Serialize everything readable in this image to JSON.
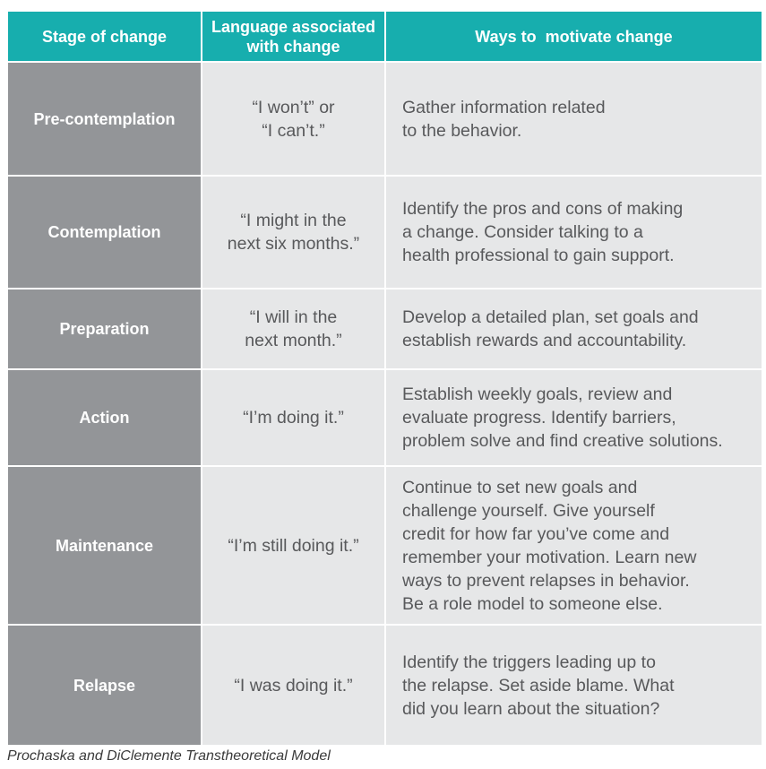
{
  "table": {
    "headers": {
      "stage": "Stage of change",
      "language_line1": "Language associated",
      "language_line2": "with change",
      "ways": "Ways to  motivate change"
    },
    "rows": [
      {
        "stage": "Pre-contemplation",
        "language": [
          "“I won’t” or",
          "“I can’t.”"
        ],
        "ways": [
          "Gather information related",
          "to the behavior."
        ]
      },
      {
        "stage": "Contemplation",
        "language": [
          "“I might in the",
          "next six months.”"
        ],
        "ways": [
          "Identify the pros and cons of making",
          "a change. Consider talking to a",
          "health professional to gain support."
        ]
      },
      {
        "stage": "Preparation",
        "language": [
          "“I will in the",
          "next month.”"
        ],
        "ways": [
          "Develop a detailed plan, set goals and",
          "establish rewards and accountability."
        ]
      },
      {
        "stage": "Action",
        "language": [
          "“I’m doing it.”"
        ],
        "ways": [
          "Establish weekly goals, review and",
          "evaluate progress. Identify barriers,",
          "problem solve and find creative solutions."
        ]
      },
      {
        "stage": "Maintenance",
        "language": [
          "“I’m still doing it.”"
        ],
        "ways": [
          "Continue to set new goals and",
          "challenge yourself. Give yourself",
          "credit for how far you’ve come and",
          "remember your motivation. Learn new",
          "ways to prevent relapses in behavior.",
          "Be a role model to someone else."
        ]
      },
      {
        "stage": "Relapse",
        "language": [
          "“I was doing it.”"
        ],
        "ways": [
          "Identify the triggers leading up to",
          "the relapse. Set aside blame. What",
          "did you learn about the situation?"
        ]
      }
    ]
  },
  "caption": "Prochaska and DiClemente Transtheoretical Model",
  "colors": {
    "header_bg": "#17aeae",
    "stage_bg": "#939598",
    "cell_bg": "#e6e7e8",
    "cell_text": "#58595b"
  }
}
